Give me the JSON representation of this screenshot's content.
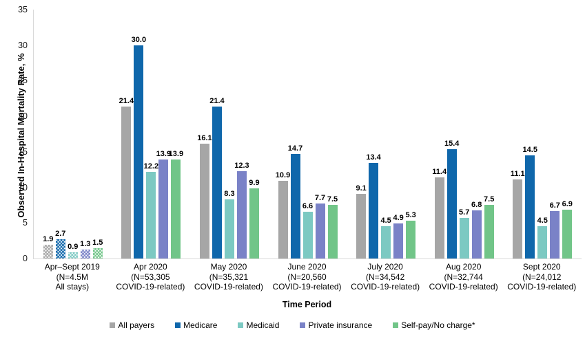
{
  "chart_data": {
    "type": "bar",
    "title": "",
    "ylabel": "Observed In-Hospital Mortality Rate, %",
    "xlabel": "Time Period",
    "ylim": [
      0,
      35
    ],
    "yticks": [
      0,
      5,
      10,
      15,
      20,
      25,
      30,
      35
    ],
    "grid": false,
    "legend_position": "bottom",
    "value_label_decimals": 1,
    "patterned_categories": [
      0
    ],
    "categories": [
      {
        "lines": [
          "Apr–Sept 2019",
          "(N=4.5M",
          "All stays)"
        ]
      },
      {
        "lines": [
          "Apr 2020",
          "(N=53,305",
          "COVID-19-related)"
        ]
      },
      {
        "lines": [
          "May 2020",
          "(N=35,321",
          "COVID-19-related)"
        ]
      },
      {
        "lines": [
          "June 2020",
          "(N=20,560",
          "COVID-19-related)"
        ]
      },
      {
        "lines": [
          "July 2020",
          "(N=34,542",
          "COVID-19-related)"
        ]
      },
      {
        "lines": [
          "Aug 2020",
          "(N=32,744",
          "COVID-19-related)"
        ]
      },
      {
        "lines": [
          "Sept 2020",
          "(N=24,012",
          "COVID-19-related)"
        ]
      }
    ],
    "series": [
      {
        "name": "All payers",
        "color": "#a6a6a6",
        "values": [
          1.9,
          21.4,
          16.1,
          10.9,
          9.1,
          11.4,
          11.1
        ]
      },
      {
        "name": "Medicare",
        "color": "#0f67ab",
        "values": [
          2.7,
          30.0,
          21.4,
          14.7,
          13.4,
          15.4,
          14.5
        ]
      },
      {
        "name": "Medicaid",
        "color": "#7cc9c2",
        "values": [
          0.9,
          12.2,
          8.3,
          6.6,
          4.5,
          5.7,
          4.5
        ]
      },
      {
        "name": "Private insurance",
        "color": "#7a82c7",
        "values": [
          1.3,
          13.9,
          12.3,
          7.7,
          4.9,
          6.8,
          6.7
        ]
      },
      {
        "name": "Self-pay/No charge*",
        "color": "#71c588",
        "values": [
          1.5,
          13.9,
          9.9,
          7.5,
          5.3,
          7.5,
          6.9
        ]
      }
    ],
    "colors": {
      "axis_line": "#d9d9d9",
      "text": "#000000"
    }
  }
}
